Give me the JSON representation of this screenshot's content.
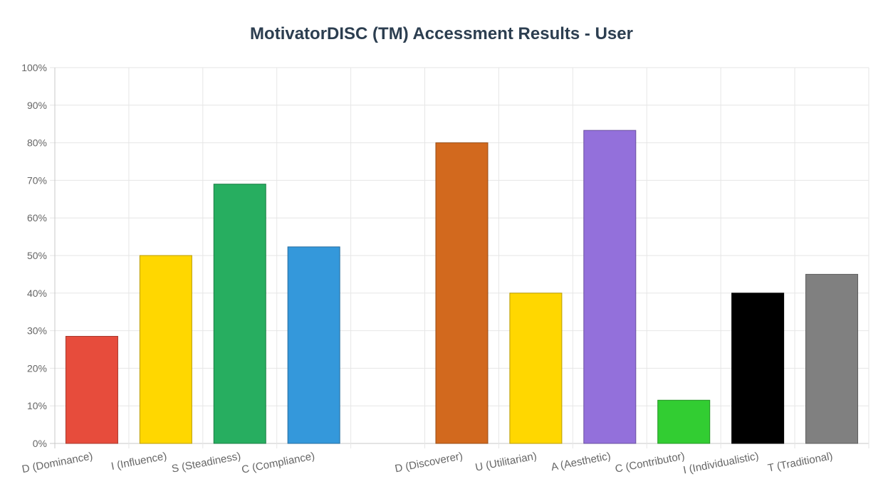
{
  "chart_data": {
    "type": "bar",
    "title": "MotivatorDISC (TM) Accessment Results - User",
    "xlabel": "",
    "ylabel": "",
    "ylim": [
      0,
      100
    ],
    "y_ticks": [
      "0%",
      "10%",
      "20%",
      "30%",
      "40%",
      "50%",
      "60%",
      "70%",
      "80%",
      "90%",
      "100%"
    ],
    "grid": true,
    "legend": "none",
    "categories": [
      "D (Dominance)",
      "I (Influence)",
      "S (Steadiness)",
      "C (Compliance)",
      "",
      "D (Discoverer)",
      "U (Utilitarian)",
      "A (Aesthetic)",
      "C (Contributor)",
      "I (Individualistic)",
      "T (Traditional)"
    ],
    "values": [
      28.5,
      50,
      69,
      52.3,
      null,
      80,
      40,
      83.3,
      11.5,
      40,
      45
    ],
    "colors": [
      "#e74c3c",
      "#ffd700",
      "#27ae60",
      "#3498db",
      null,
      "#d2691e",
      "#ffd700",
      "#9370db",
      "#32cd32",
      "#000000",
      "#808080"
    ]
  }
}
